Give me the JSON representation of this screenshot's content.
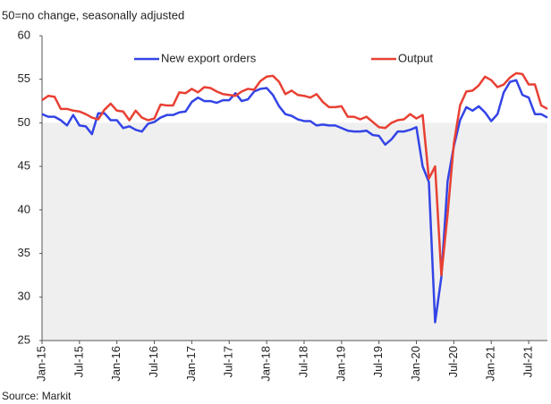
{
  "chart_data": {
    "type": "line",
    "title": "50=no change, seasonally adjusted",
    "source": "Source: Markit",
    "categories": [
      "Jan-15",
      null,
      null,
      null,
      null,
      null,
      "Jul-15",
      null,
      null,
      null,
      null,
      null,
      "Jan-16",
      null,
      null,
      null,
      null,
      null,
      "Jul-16",
      null,
      null,
      null,
      null,
      null,
      "Jan-17",
      null,
      null,
      null,
      null,
      null,
      "Jul-17",
      null,
      null,
      null,
      null,
      null,
      "Jan-18",
      null,
      null,
      null,
      null,
      null,
      "Jul-18",
      null,
      null,
      null,
      null,
      null,
      "Jan-19",
      null,
      null,
      null,
      null,
      null,
      "Jul-19",
      null,
      null,
      null,
      null,
      null,
      "Jan-20",
      null,
      null,
      null,
      null,
      null,
      "Jul-20",
      null,
      null,
      null,
      null,
      null,
      "Jan-21",
      null,
      null,
      null,
      null,
      null,
      "Jul-21",
      null,
      null,
      null
    ],
    "series": [
      {
        "name": "New export orders",
        "color": "#3344e6",
        "values": [
          51.0,
          50.7,
          50.7,
          50.3,
          49.7,
          50.9,
          49.7,
          49.6,
          48.7,
          51.1,
          51.1,
          50.3,
          50.3,
          49.4,
          49.6,
          49.2,
          49.0,
          49.9,
          50.1,
          50.6,
          50.9,
          50.9,
          51.2,
          51.3,
          52.4,
          52.9,
          52.5,
          52.5,
          52.3,
          52.6,
          52.6,
          53.4,
          52.5,
          52.7,
          53.6,
          53.9,
          54.0,
          53.2,
          51.9,
          51.0,
          50.8,
          50.4,
          50.2,
          50.2,
          49.7,
          49.8,
          49.7,
          49.7,
          49.4,
          49.1,
          49.0,
          49.0,
          49.1,
          48.6,
          48.5,
          47.5,
          48.1,
          49.0,
          49.0,
          49.2,
          49.5,
          45.0,
          43.2,
          27.1,
          32.3,
          43.3,
          47.3,
          50.3,
          51.8,
          51.4,
          51.9,
          51.2,
          50.2,
          51.0,
          53.5,
          54.7,
          54.9,
          53.2,
          52.9,
          51.0,
          51.0,
          50.6
        ]
      },
      {
        "name": "Output",
        "color": "#e84033",
        "values": [
          52.6,
          53.1,
          53.0,
          51.6,
          51.6,
          51.4,
          51.3,
          51.0,
          50.6,
          50.4,
          51.5,
          52.2,
          51.4,
          51.3,
          50.3,
          51.4,
          50.6,
          50.3,
          50.5,
          52.1,
          52.0,
          52.0,
          53.5,
          53.4,
          53.9,
          53.5,
          54.1,
          54.0,
          53.6,
          53.3,
          53.2,
          53.1,
          53.6,
          53.9,
          53.8,
          54.8,
          55.3,
          55.4,
          54.7,
          53.3,
          53.7,
          53.2,
          53.1,
          52.9,
          53.3,
          52.4,
          51.8,
          51.8,
          51.9,
          50.7,
          50.7,
          50.4,
          50.7,
          50.1,
          49.5,
          49.4,
          50.0,
          50.3,
          50.4,
          51.0,
          50.5,
          50.9,
          43.6,
          45.0,
          32.5,
          39.5,
          47.6,
          52.0,
          53.6,
          53.7,
          54.3,
          55.3,
          54.9,
          54.1,
          54.4,
          55.2,
          55.7,
          55.6,
          54.4,
          54.4,
          52.0,
          51.6
        ]
      }
    ],
    "ylim": [
      25,
      60
    ],
    "yticks": [
      25,
      30,
      35,
      40,
      45,
      50,
      55,
      60
    ],
    "shade_below": 50,
    "legend": "top"
  }
}
